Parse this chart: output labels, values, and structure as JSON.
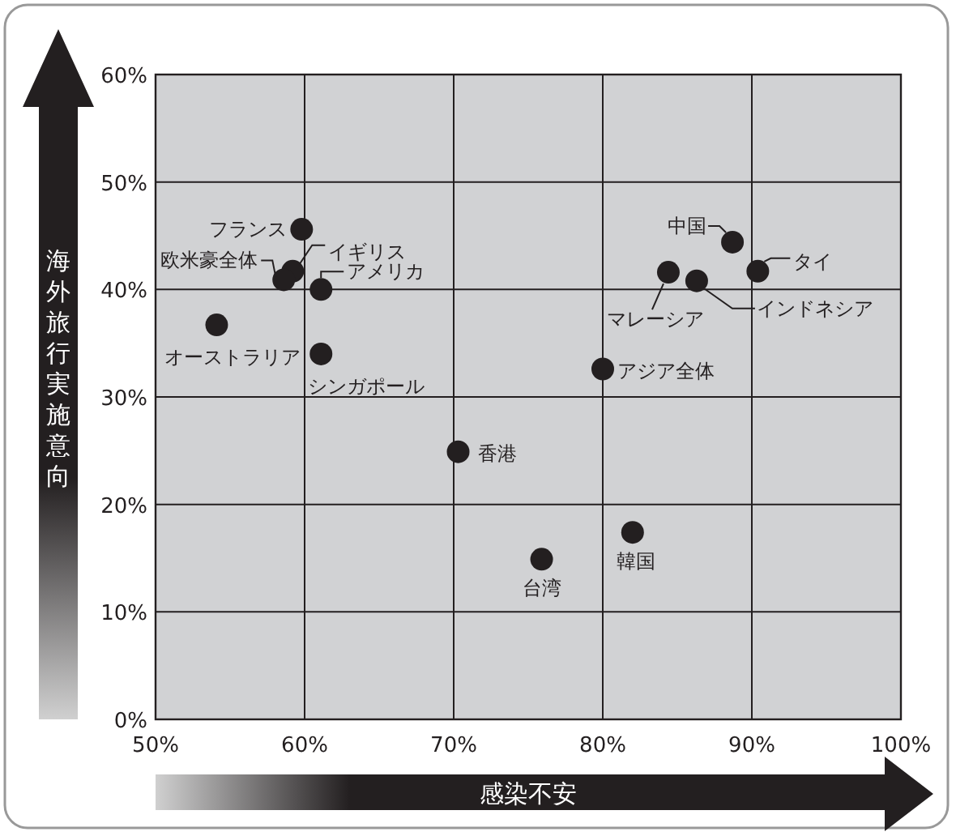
{
  "chart_data": {
    "type": "scatter",
    "xlabel": "感染不安",
    "ylabel": "海外旅行実施意向",
    "x": [
      59.8,
      59.2,
      58.6,
      61.1,
      54.1,
      61.1,
      70.3,
      75.9,
      82.0,
      80.0,
      88.7,
      84.4,
      86.3,
      90.4
    ],
    "values": [
      45.6,
      41.7,
      40.9,
      40.0,
      36.7,
      34.0,
      24.9,
      14.9,
      17.4,
      32.6,
      44.4,
      41.6,
      40.8,
      41.7
    ],
    "color": "#231f20",
    "marker": "circle",
    "grid": true,
    "xlim": [
      50,
      100
    ],
    "ylim": [
      0,
      60
    ],
    "xticks": [
      {
        "value": 50,
        "label": "50%"
      },
      {
        "value": 60,
        "label": "60%"
      },
      {
        "value": 70,
        "label": "70%"
      },
      {
        "value": 80,
        "label": "80%"
      },
      {
        "value": 90,
        "label": "90%"
      },
      {
        "value": 100,
        "label": "100%"
      }
    ],
    "yticks": [
      {
        "value": 0,
        "label": "0%"
      },
      {
        "value": 10,
        "label": "10%"
      },
      {
        "value": 20,
        "label": "20%"
      },
      {
        "value": 30,
        "label": "30%"
      },
      {
        "value": 40,
        "label": "40%"
      },
      {
        "value": 50,
        "label": "50%"
      },
      {
        "value": 60,
        "label": "60%"
      }
    ],
    "annotations": [
      {
        "text": "フランス",
        "x": 59.8,
        "y": 45.6
      },
      {
        "text": "イギリス",
        "x": 59.2,
        "y": 41.7
      },
      {
        "text": "欧米豪全体",
        "x": 58.6,
        "y": 40.9
      },
      {
        "text": "アメリカ",
        "x": 61.1,
        "y": 40.0
      },
      {
        "text": "オーストラリア",
        "x": 54.1,
        "y": 36.7
      },
      {
        "text": "シンガポール",
        "x": 61.1,
        "y": 34.0
      },
      {
        "text": "香港",
        "x": 70.3,
        "y": 24.9
      },
      {
        "text": "台湾",
        "x": 75.9,
        "y": 14.9
      },
      {
        "text": "韓国",
        "x": 82.0,
        "y": 17.4
      },
      {
        "text": "アジア全体",
        "x": 80.0,
        "y": 32.6
      },
      {
        "text": "中国",
        "x": 88.7,
        "y": 44.4
      },
      {
        "text": "マレーシア",
        "x": 84.4,
        "y": 41.6
      },
      {
        "text": "インドネシア",
        "x": 86.3,
        "y": 40.8
      },
      {
        "text": "タイ",
        "x": 90.4,
        "y": 41.7
      }
    ]
  }
}
